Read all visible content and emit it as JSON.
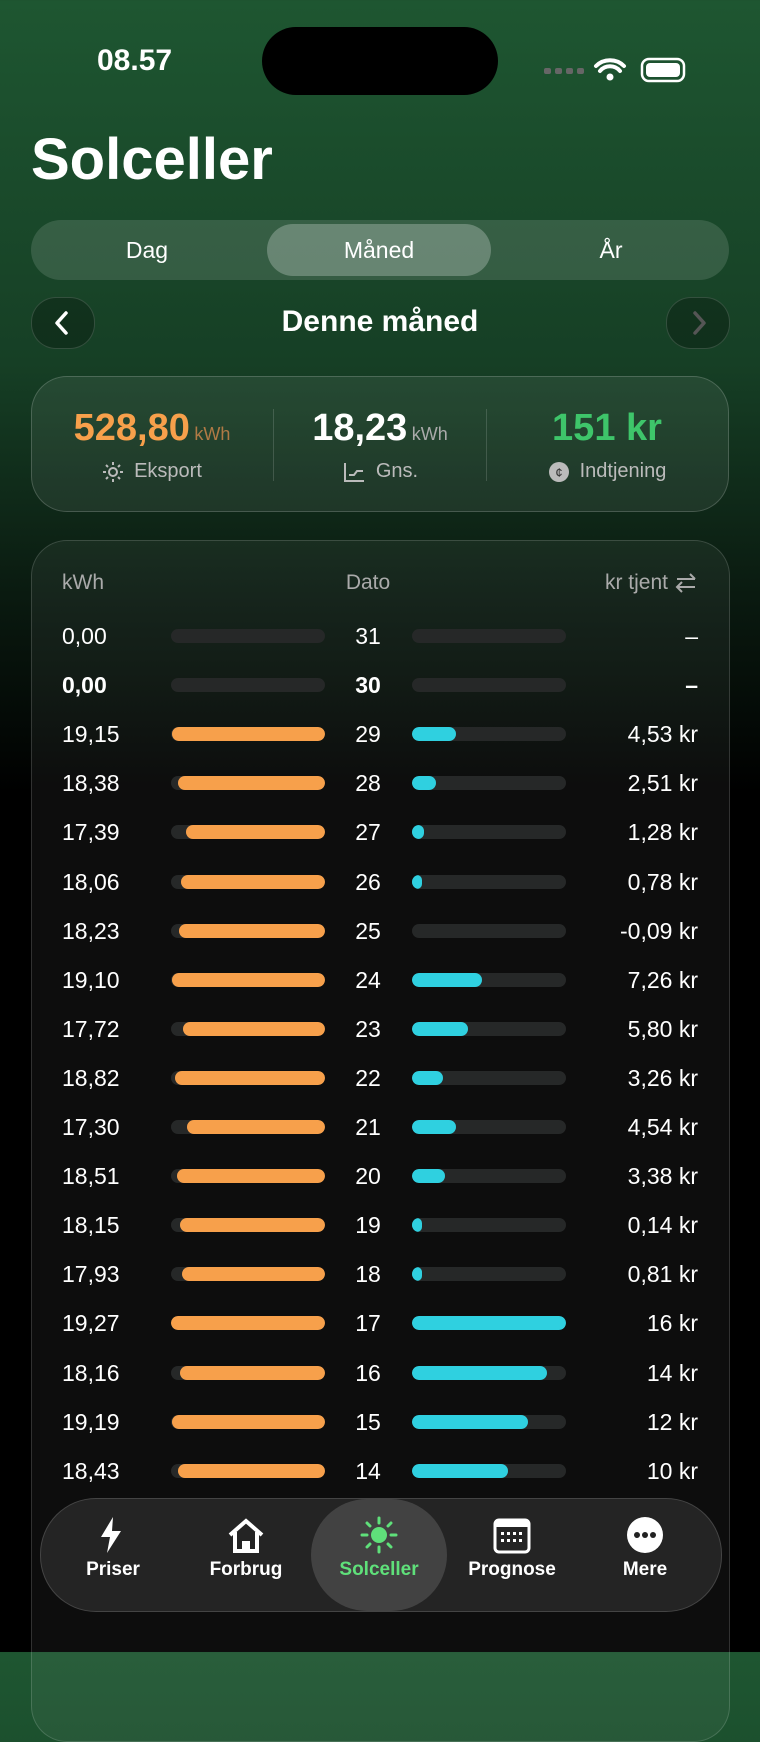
{
  "status": {
    "time": "08.57"
  },
  "header": {
    "title": "Solceller"
  },
  "tabs": [
    "Dag",
    "Måned",
    "År"
  ],
  "active_tab": 1,
  "period": "Denne måned",
  "summary": {
    "export": {
      "value": "528,80",
      "unit": "kWh",
      "label": "Eksport"
    },
    "average": {
      "value": "18,23",
      "unit": "kWh",
      "label": "Gns."
    },
    "earnings": {
      "value": "151 kr",
      "label": "Indtjening"
    }
  },
  "table": {
    "headers": [
      "kWh",
      "Dato",
      "kr tjent"
    ],
    "highlight_row": 1,
    "rows": [
      [
        "0,00",
        "31",
        "–"
      ],
      [
        "0,00",
        "30",
        "–"
      ],
      [
        "19,15",
        "29",
        "4,53 kr"
      ],
      [
        "18,38",
        "28",
        "2,51 kr"
      ],
      [
        "17,39",
        "27",
        "1,28 kr"
      ],
      [
        "18,06",
        "26",
        "0,78 kr"
      ],
      [
        "18,23",
        "25",
        "-0,09 kr"
      ],
      [
        "19,10",
        "24",
        "7,26 kr"
      ],
      [
        "17,72",
        "23",
        "5,80 kr"
      ],
      [
        "18,82",
        "22",
        "3,26 kr"
      ],
      [
        "17,30",
        "21",
        "4,54 kr"
      ],
      [
        "18,51",
        "20",
        "3,38 kr"
      ],
      [
        "18,15",
        "19",
        "0,14 kr"
      ],
      [
        "17,93",
        "18",
        "0,81 kr"
      ],
      [
        "19,27",
        "17",
        "16 kr"
      ],
      [
        "18,16",
        "16",
        "14 kr"
      ],
      [
        "19,19",
        "15",
        "12 kr"
      ],
      [
        "18,43",
        "14",
        "10 kr"
      ]
    ]
  },
  "tabbar": [
    "Priser",
    "Forbrug",
    "Solceller",
    "Prognose",
    "Mere"
  ],
  "active_tabbar": 2
}
